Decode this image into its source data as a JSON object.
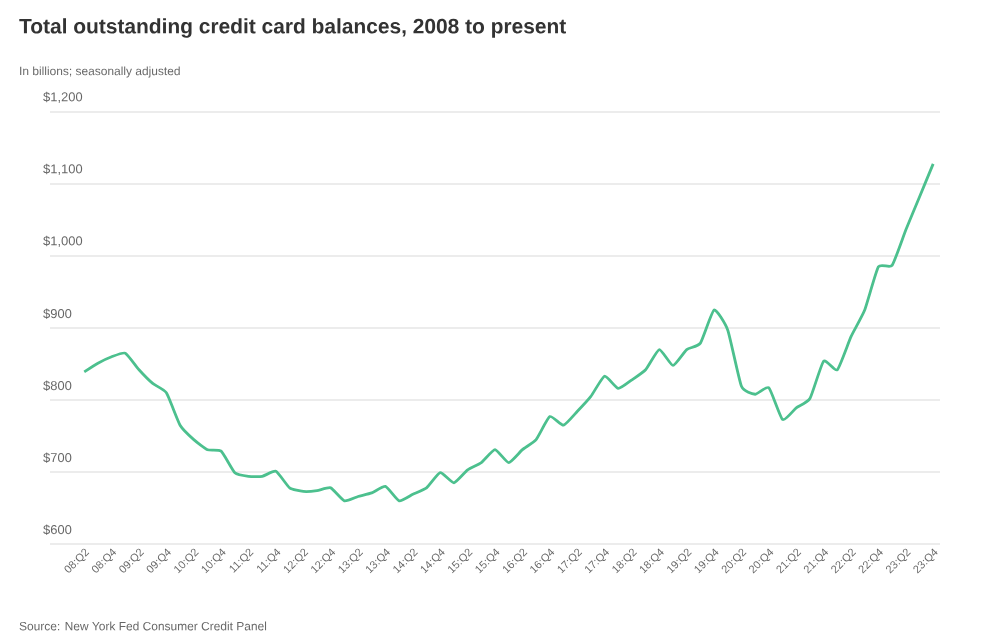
{
  "chart_data": {
    "type": "line",
    "title": "Total outstanding credit card balances, 2008 to present",
    "subtitle": "In billions; seasonally adjusted",
    "categories": [
      "08:Q2",
      null,
      "08:Q4",
      null,
      "09:Q2",
      null,
      "09:Q4",
      null,
      "10:Q2",
      null,
      "10:Q4",
      null,
      "11:Q2",
      null,
      "11:Q4",
      null,
      "12:Q2",
      null,
      "12:Q4",
      null,
      "13:Q2",
      null,
      "13:Q4",
      null,
      "14:Q2",
      null,
      "14:Q4",
      null,
      "15:Q2",
      null,
      "15:Q4",
      null,
      "16:Q2",
      null,
      "16:Q4",
      null,
      "17:Q2",
      null,
      "17:Q4",
      null,
      "18:Q2",
      null,
      "18:Q4",
      null,
      "19:Q2",
      null,
      "19:Q4",
      null,
      "20:Q2",
      null,
      "20:Q4",
      null,
      "21:Q2",
      null,
      "21:Q4",
      null,
      "22:Q2",
      null,
      "22:Q4",
      null,
      "23:Q2",
      null,
      "23:Q4"
    ],
    "series": [
      {
        "color": "#4cc08e",
        "values": [
          839,
          851,
          860,
          865,
          842,
          823,
          810,
          765,
          745,
          731,
          729,
          699,
          694,
          694,
          701,
          678,
          673,
          674,
          678,
          660,
          666,
          671,
          680,
          660,
          669,
          678,
          699,
          685,
          703,
          713,
          731,
          713,
          731,
          745,
          777,
          765,
          784,
          805,
          833,
          816,
          828,
          842,
          870,
          848,
          870,
          879,
          925,
          897,
          819,
          808,
          817,
          773,
          789,
          802,
          854,
          842,
          888,
          925,
          985,
          987,
          1036,
          1082,
          1128
        ]
      }
    ],
    "ylim": [
      600,
      1200
    ],
    "yticks": [
      {
        "value": 600,
        "label": "$600"
      },
      {
        "value": 700,
        "label": "$700"
      },
      {
        "value": 800,
        "label": "$800"
      },
      {
        "value": 900,
        "label": "$900"
      },
      {
        "value": 1000,
        "label": "$1,000"
      },
      {
        "value": 1100,
        "label": "$1,100"
      },
      {
        "value": 1200,
        "label": "$1,200"
      }
    ],
    "grid": "y",
    "annotations": [
      "Source: New York Fed Consumer Credit Panel"
    ]
  }
}
